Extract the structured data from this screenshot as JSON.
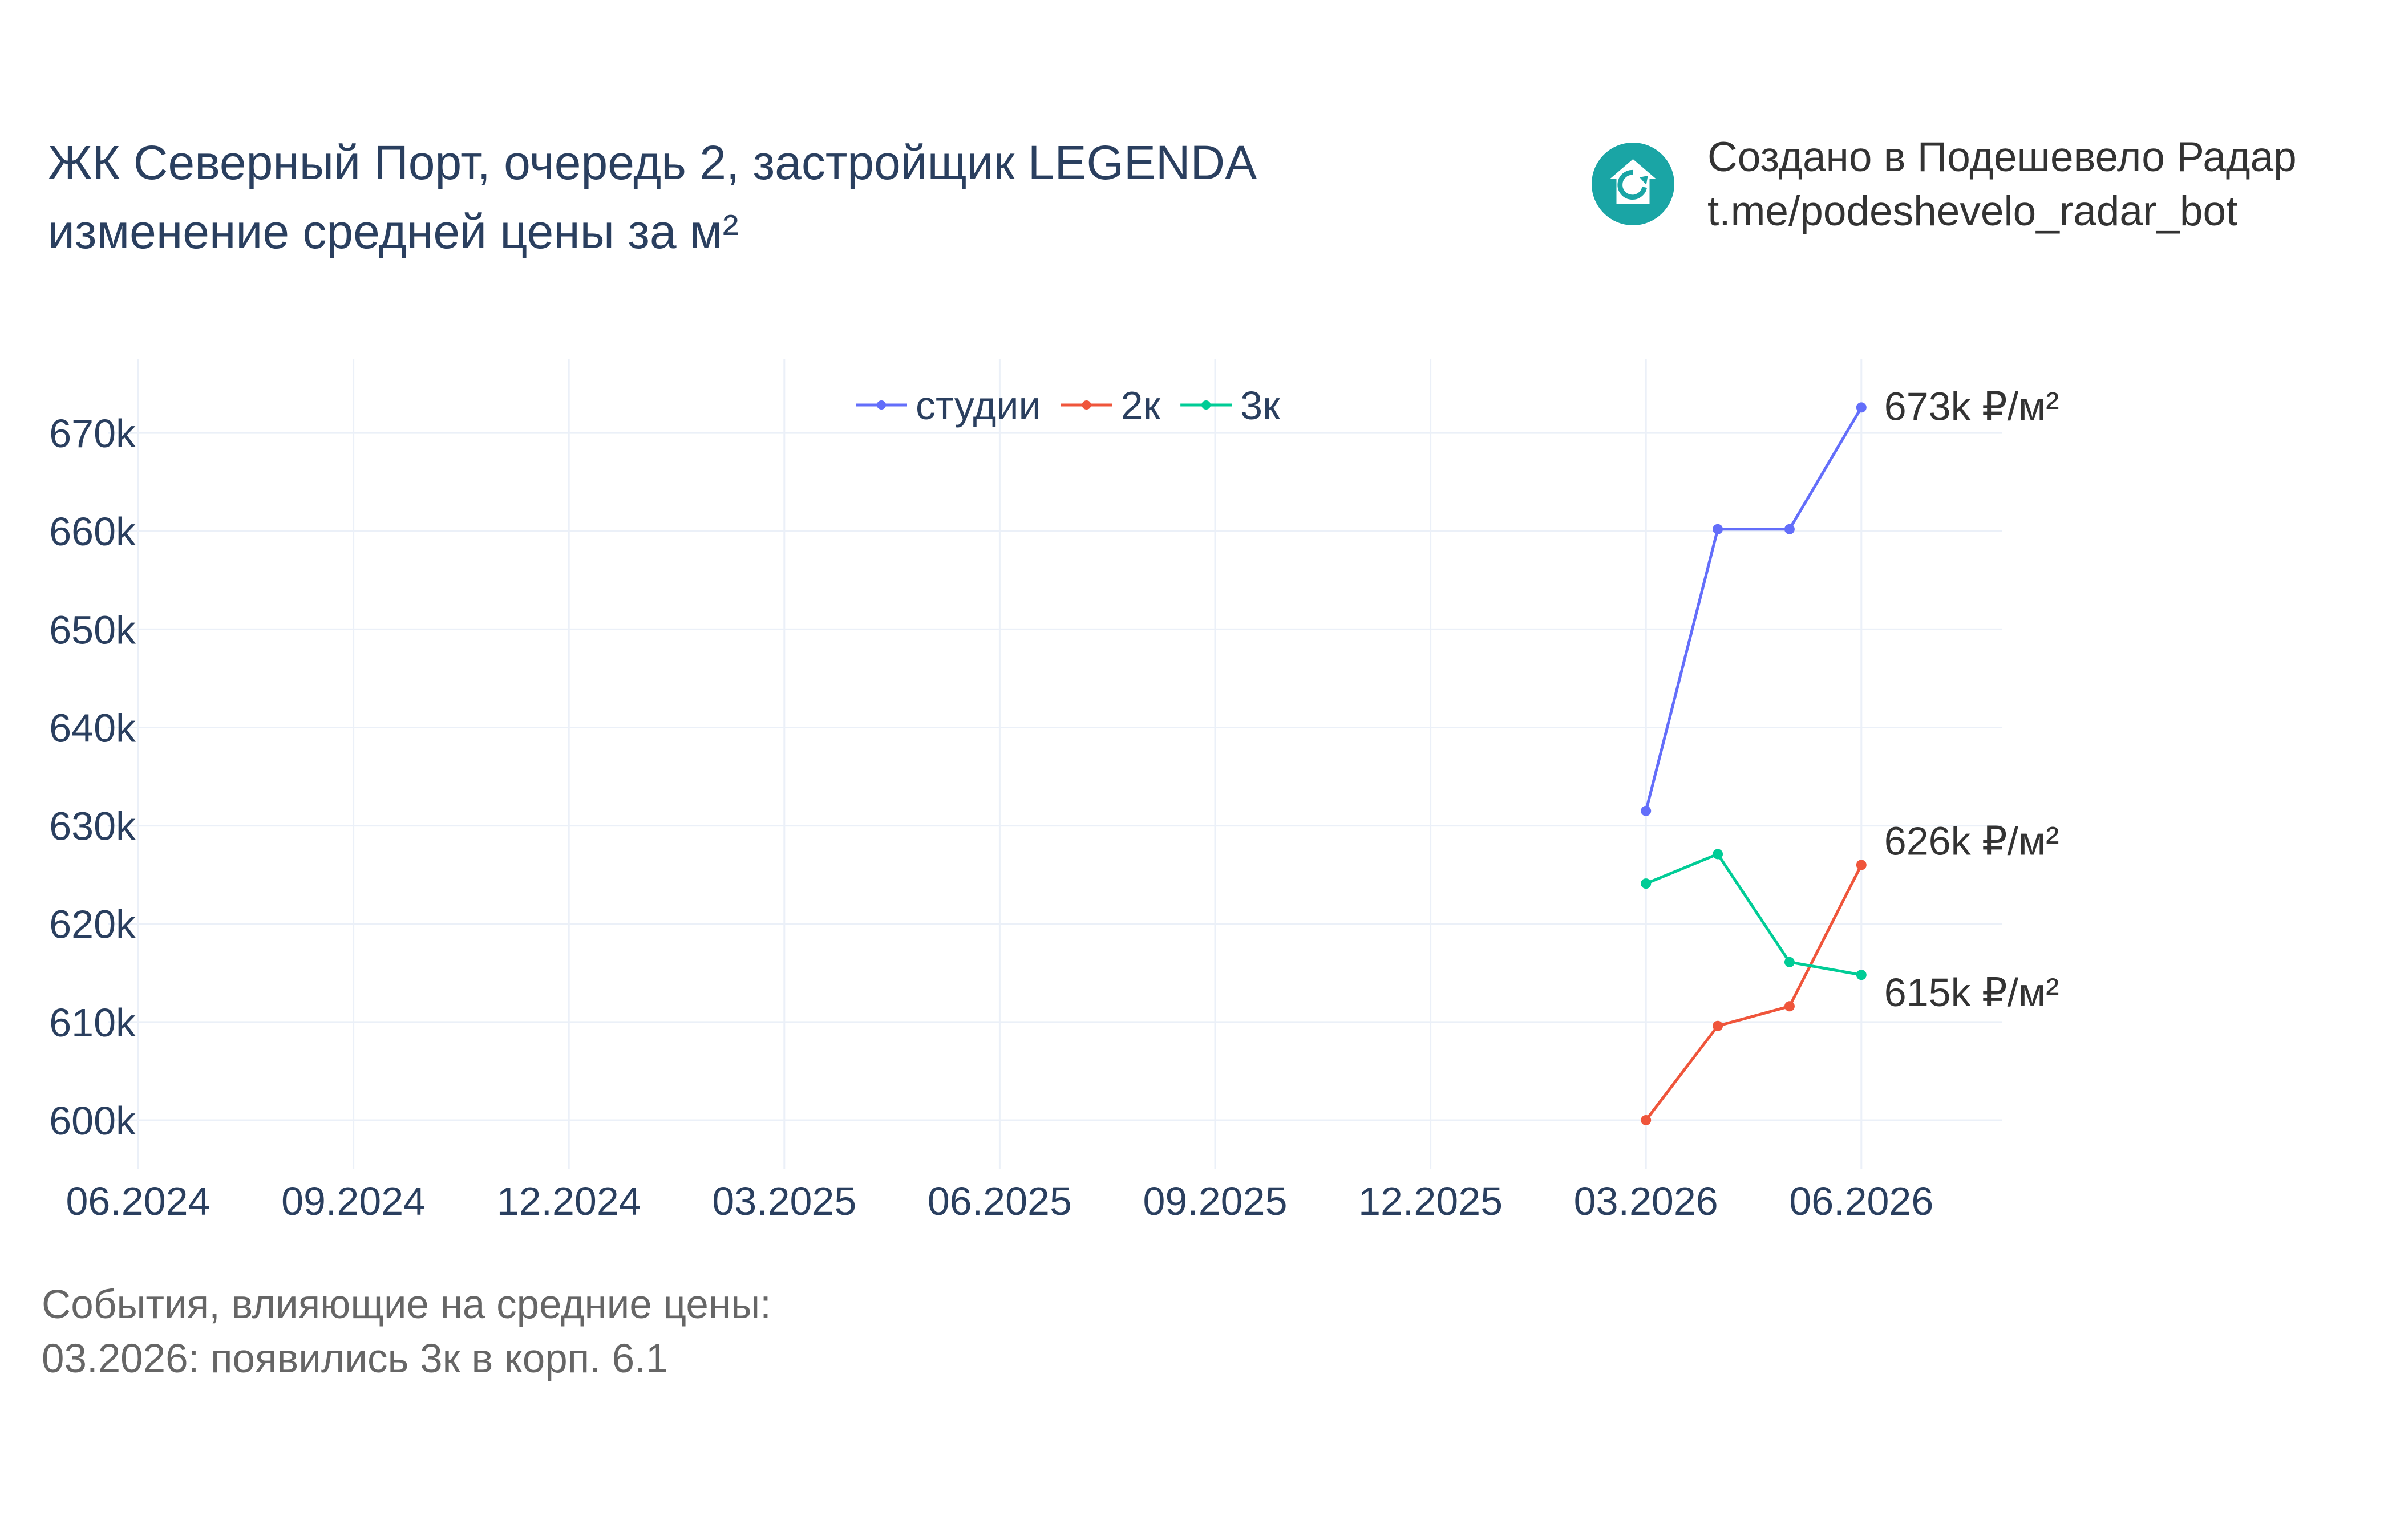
{
  "title": {
    "line1": "ЖК Северный Порт, очередь 2, застройщик LEGENDA",
    "line2": "изменение средней цены за м²"
  },
  "brand": {
    "icon": "house-refresh-icon",
    "line1": "Создано в Подешевело Радар",
    "line2": "t.me/podeshevelo_radar_bot",
    "color": "#1aa5a5"
  },
  "events": {
    "heading": "События, влияющие на средние цены:",
    "items": [
      "03.2026: появились 3к в корп. 6.1"
    ]
  },
  "chart_data": {
    "type": "line",
    "x_tick_labels": [
      "06.2024",
      "09.2024",
      "12.2024",
      "03.2025",
      "06.2025",
      "09.2025",
      "12.2025",
      "03.2026",
      "06.2026"
    ],
    "x_range": [
      "2024-06",
      "2026-08"
    ],
    "y_tick_labels": [
      "600k",
      "610k",
      "620k",
      "630k",
      "640k",
      "650k",
      "660k",
      "670k"
    ],
    "y_ticks": [
      600000,
      610000,
      620000,
      630000,
      640000,
      650000,
      660000,
      670000
    ],
    "ylim": [
      595000,
      677500
    ],
    "grid": true,
    "legend_position": "top-center",
    "series": [
      {
        "name": "студии",
        "color": "#636efa",
        "x": [
          "2026-03",
          "2026-04",
          "2026-05",
          "2026-06"
        ],
        "values": [
          631500,
          660200,
          660200,
          672600
        ],
        "end_label": "673k ₽/м²"
      },
      {
        "name": "2к",
        "color": "#ef553b",
        "x": [
          "2026-03",
          "2026-04",
          "2026-05",
          "2026-06"
        ],
        "values": [
          600000,
          609600,
          611600,
          626000
        ],
        "end_label": "626k ₽/м²"
      },
      {
        "name": "3к",
        "color": "#00cc96",
        "x": [
          "2026-03",
          "2026-04",
          "2026-05",
          "2026-06"
        ],
        "values": [
          624100,
          627100,
          616100,
          614800
        ],
        "end_label": "615k ₽/м²"
      }
    ]
  }
}
